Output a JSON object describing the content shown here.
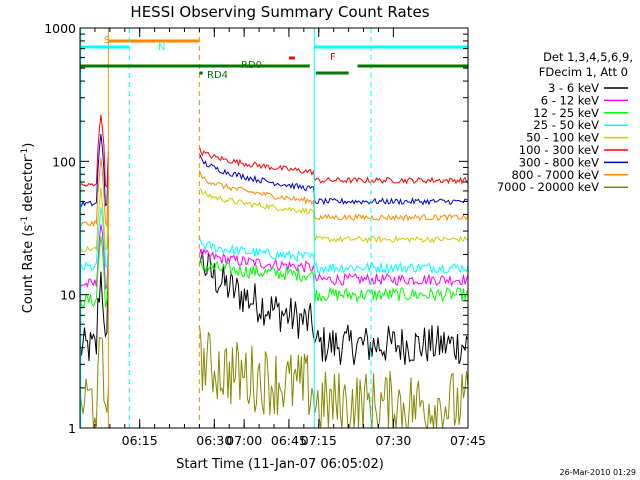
{
  "chart_data": {
    "type": "line",
    "title": "HESSI Observing Summary Count Rates",
    "xlabel": "Start Time (11-Jan-07 06:05:02)",
    "ylabel": "Count Rate (s⁻¹ detector⁻¹)",
    "ylabel_main": "Count Rate (s",
    "ylabel_exp1": "-1",
    "ylabel_mid": " detector",
    "ylabel_exp2": "-1",
    "ylabel_end": ")",
    "scale": "log",
    "xlim_minutes": [
      6.05,
      7.75
    ],
    "ylim": [
      1,
      1000
    ],
    "x_ticks": [
      {
        "label": "06:15",
        "t": 6.25
      },
      {
        "label": "06:30",
        "t": 6.5
      },
      {
        "label": "06:45",
        "t": 6.75
      },
      {
        "label": "07:00",
        "t": 7.0
      },
      {
        "label": "07:15",
        "t": 7.25
      },
      {
        "label": "07:30",
        "t": 7.5
      },
      {
        "label": "07:45",
        "t": 7.75
      }
    ],
    "y_ticks": [
      {
        "label": "1",
        "v": 1
      },
      {
        "label": "10",
        "v": 10
      },
      {
        "label": "100",
        "v": 100
      },
      {
        "label": "1000",
        "v": 1000
      }
    ],
    "legend": {
      "placement": "right",
      "header1": "Det 1,3,4,5,6,9,",
      "header2": "FDecim 1, Att 0"
    },
    "series": [
      {
        "name": "3 - 6 keV",
        "color": "#000000"
      },
      {
        "name": "6 - 12 keV",
        "color": "#ff00ff"
      },
      {
        "name": "12 - 25 keV",
        "color": "#00ff00"
      },
      {
        "name": "25 - 50 keV",
        "color": "#00ffff"
      },
      {
        "name": "50 - 100 keV",
        "color": "#cccc00"
      },
      {
        "name": "100 - 300 keV",
        "color": "#ff0000"
      },
      {
        "name": "300 - 800 keV",
        "color": "#0000cc"
      },
      {
        "name": "800 - 7000 keV",
        "color": "#ff8800"
      },
      {
        "name": "7000 - 20000 keV",
        "color": "#888800"
      }
    ],
    "flags": [
      {
        "label": "S",
        "color": "#ff8800"
      },
      {
        "label": "N",
        "color": "#00ffff"
      },
      {
        "label": "F",
        "color": "#ff0000"
      },
      {
        "label": "RD0",
        "color": "#007700"
      },
      {
        "label": "RD4",
        "color": "#007700"
      }
    ],
    "timestamp": "26-Mar-2010 01:29"
  }
}
